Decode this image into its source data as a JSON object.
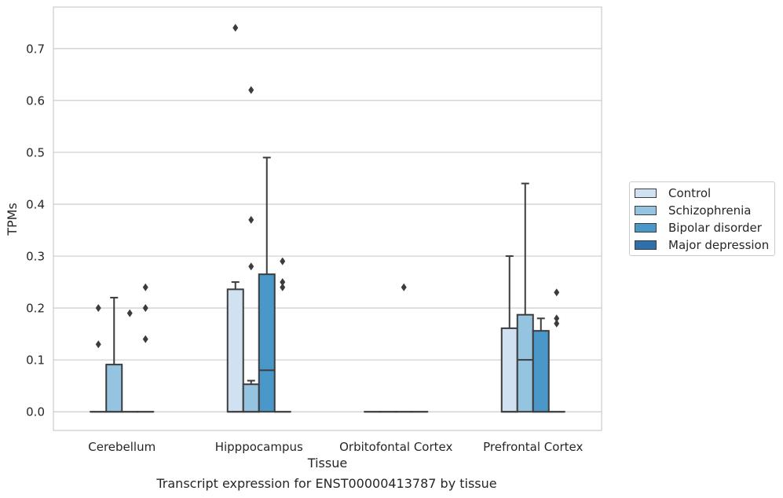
{
  "chart_data": {
    "type": "box",
    "categories": [
      "Cerebellum",
      "Hipppocampus",
      "Orbitofontal Cortex",
      "Prefrontal Cortex"
    ],
    "xlabel": "Tissue",
    "ylabel": "TPMs",
    "ylim": [
      -0.036,
      0.78
    ],
    "yticks": [
      0.0,
      0.1,
      0.2,
      0.3,
      0.4,
      0.5,
      0.6,
      0.7
    ],
    "ytick_labels": [
      "0.0",
      "0.1",
      "0.2",
      "0.3",
      "0.4",
      "0.5",
      "0.6",
      "0.7"
    ],
    "grid": true,
    "legend_position": "right",
    "series": [
      {
        "name": "Control",
        "color": "#d0e1f2",
        "boxes": [
          {
            "q1": 0,
            "median": 0,
            "q3": 0,
            "whisker_low": 0,
            "whisker_high": 0,
            "outliers": [
              0.13,
              0.2
            ]
          },
          {
            "q1": 0,
            "median": 0,
            "q3": 0.236,
            "whisker_low": 0,
            "whisker_high": 0.25,
            "outliers": [
              0.74
            ]
          },
          {
            "q1": 0,
            "median": 0,
            "q3": 0,
            "whisker_low": 0,
            "whisker_high": 0,
            "outliers": []
          },
          {
            "q1": 0,
            "median": 0,
            "q3": 0.161,
            "whisker_low": 0,
            "whisker_high": 0.3,
            "outliers": []
          }
        ]
      },
      {
        "name": "Schizophrenia",
        "color": "#94c4df",
        "boxes": [
          {
            "q1": 0,
            "median": 0,
            "q3": 0.091,
            "whisker_low": 0,
            "whisker_high": 0.22,
            "outliers": []
          },
          {
            "q1": 0,
            "median": 0,
            "q3": 0.053,
            "whisker_low": 0,
            "whisker_high": 0.06,
            "outliers": [
              0.28,
              0.37,
              0.62
            ]
          },
          {
            "q1": 0,
            "median": 0,
            "q3": 0,
            "whisker_low": 0,
            "whisker_high": 0,
            "outliers": []
          },
          {
            "q1": 0,
            "median": 0.1,
            "q3": 0.187,
            "whisker_low": 0,
            "whisker_high": 0.44,
            "outliers": []
          }
        ]
      },
      {
        "name": "Bipolar disorder",
        "color": "#4a98c9",
        "boxes": [
          {
            "q1": 0,
            "median": 0,
            "q3": 0,
            "whisker_low": 0,
            "whisker_high": 0,
            "outliers": [
              0.19
            ]
          },
          {
            "q1": 0,
            "median": 0.08,
            "q3": 0.265,
            "whisker_low": 0,
            "whisker_high": 0.49,
            "outliers": []
          },
          {
            "q1": 0,
            "median": 0,
            "q3": 0,
            "whisker_low": 0,
            "whisker_high": 0,
            "outliers": [
              0.24
            ]
          },
          {
            "q1": 0,
            "median": 0,
            "q3": 0.156,
            "whisker_low": 0,
            "whisker_high": 0.18,
            "outliers": []
          }
        ]
      },
      {
        "name": "Major depression",
        "color": "#2e6fac",
        "boxes": [
          {
            "q1": 0,
            "median": 0,
            "q3": 0,
            "whisker_low": 0,
            "whisker_high": 0,
            "outliers": [
              0.14,
              0.2,
              0.24
            ]
          },
          {
            "q1": 0,
            "median": 0,
            "q3": 0,
            "whisker_low": 0,
            "whisker_high": 0,
            "outliers": [
              0.24,
              0.25,
              0.29
            ]
          },
          {
            "q1": 0,
            "median": 0,
            "q3": 0,
            "whisker_low": 0,
            "whisker_high": 0,
            "outliers": []
          },
          {
            "q1": 0,
            "median": 0,
            "q3": 0,
            "whisker_low": 0,
            "whisker_high": 0,
            "outliers": [
              0.17,
              0.18,
              0.23
            ]
          }
        ]
      }
    ]
  },
  "caption": "Transcript expression for ENST00000413787 by tissue",
  "legend": {
    "items": [
      {
        "label": "Control",
        "color": "#d0e1f2"
      },
      {
        "label": "Schizophrenia",
        "color": "#94c4df"
      },
      {
        "label": "Bipolar disorder",
        "color": "#4a98c9"
      },
      {
        "label": "Major depression",
        "color": "#2e6fac"
      }
    ]
  }
}
